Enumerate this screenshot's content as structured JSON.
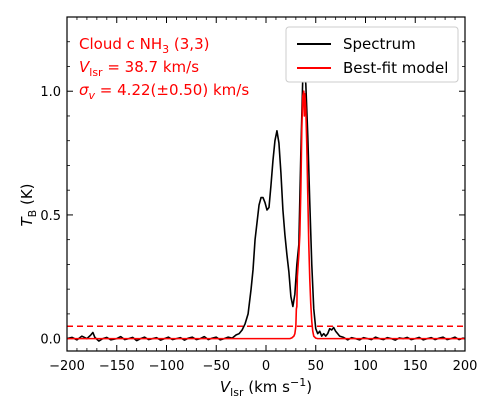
{
  "chart_data": {
    "type": "line",
    "xlim": [
      -200,
      200
    ],
    "ylim": [
      -0.05,
      1.3
    ],
    "xticks": [
      -200,
      -150,
      -100,
      -50,
      0,
      50,
      100,
      150,
      200
    ],
    "xtick_labels": [
      "−200",
      "−150",
      "−100",
      "−50",
      "0",
      "50",
      "100",
      "150",
      "200"
    ],
    "yticks": [
      0.0,
      0.5,
      1.0
    ],
    "ytick_labels": [
      "0.0",
      "0.5",
      "1.0"
    ],
    "xlabel": {
      "main": "V",
      "sub": "lsr",
      "unit_prefix": " (km s",
      "sup": "−1",
      "unit_suffix": ")"
    },
    "ylabel": {
      "main": "T",
      "sub": "B",
      "unit": " (K)"
    },
    "annotations": {
      "line1": {
        "prefix": "Cloud c NH",
        "sub": "3",
        "suffix": " (3,3)"
      },
      "line2": {
        "main": "V",
        "sub": "lsr",
        "rest": " = 38.7 km/s"
      },
      "line3": {
        "main": "σ",
        "sub": "v",
        "rest": " = 4.22(±0.50) km/s"
      }
    },
    "legend_position": "top-right",
    "threshold": {
      "y": 0.05,
      "color": "#ff0000",
      "style": "dashed"
    },
    "series": [
      {
        "name": "Spectrum",
        "color": "#000000",
        "points": [
          [
            -200,
            0.0
          ],
          [
            -195,
            0.005
          ],
          [
            -190,
            -0.005
          ],
          [
            -185,
            0.01
          ],
          [
            -180,
            0.0
          ],
          [
            -176,
            0.015
          ],
          [
            -174,
            0.025
          ],
          [
            -172,
            0.005
          ],
          [
            -168,
            -0.01
          ],
          [
            -164,
            0.0
          ],
          [
            -160,
            0.005
          ],
          [
            -156,
            -0.005
          ],
          [
            -150,
            0.0
          ],
          [
            -146,
            0.008
          ],
          [
            -142,
            -0.004
          ],
          [
            -138,
            0.0
          ],
          [
            -134,
            0.005
          ],
          [
            -130,
            -0.008
          ],
          [
            -126,
            0.0
          ],
          [
            -122,
            0.006
          ],
          [
            -118,
            -0.004
          ],
          [
            -114,
            0.0
          ],
          [
            -110,
            0.004
          ],
          [
            -106,
            -0.006
          ],
          [
            -102,
            0.0
          ],
          [
            -98,
            0.006
          ],
          [
            -94,
            -0.004
          ],
          [
            -90,
            0.0
          ],
          [
            -86,
            0.004
          ],
          [
            -82,
            -0.006
          ],
          [
            -78,
            0.002
          ],
          [
            -74,
            0.006
          ],
          [
            -70,
            -0.004
          ],
          [
            -66,
            0.0
          ],
          [
            -62,
            0.008
          ],
          [
            -58,
            -0.004
          ],
          [
            -54,
            0.002
          ],
          [
            -50,
            0.006
          ],
          [
            -46,
            -0.005
          ],
          [
            -42,
            0.0
          ],
          [
            -38,
            0.006
          ],
          [
            -34,
            0.002
          ],
          [
            -30,
            0.015
          ],
          [
            -27,
            0.02
          ],
          [
            -24,
            0.035
          ],
          [
            -21,
            0.06
          ],
          [
            -18,
            0.1
          ],
          [
            -15,
            0.2
          ],
          [
            -13,
            0.28
          ],
          [
            -11,
            0.4
          ],
          [
            -9,
            0.47
          ],
          [
            -7,
            0.54
          ],
          [
            -5,
            0.57
          ],
          [
            -3,
            0.57
          ],
          [
            -1,
            0.55
          ],
          [
            1,
            0.52
          ],
          [
            3,
            0.53
          ],
          [
            5,
            0.62
          ],
          [
            7,
            0.72
          ],
          [
            9,
            0.8
          ],
          [
            11,
            0.84
          ],
          [
            13,
            0.79
          ],
          [
            15,
            0.67
          ],
          [
            17,
            0.52
          ],
          [
            19,
            0.42
          ],
          [
            21,
            0.34
          ],
          [
            23,
            0.27
          ],
          [
            25,
            0.17
          ],
          [
            27,
            0.13
          ],
          [
            29,
            0.18
          ],
          [
            31,
            0.3
          ],
          [
            33,
            0.38
          ],
          [
            35,
            0.75
          ],
          [
            37,
            1.06
          ],
          [
            38,
            1.09
          ],
          [
            40,
            1.03
          ],
          [
            42,
            0.82
          ],
          [
            44,
            0.55
          ],
          [
            46,
            0.3
          ],
          [
            48,
            0.12
          ],
          [
            50,
            0.04
          ],
          [
            52,
            0.02
          ],
          [
            54,
            0.03
          ],
          [
            56,
            0.01
          ],
          [
            58,
            0.02
          ],
          [
            60,
            0.01
          ],
          [
            62,
            0.02
          ],
          [
            64,
            0.04
          ],
          [
            66,
            0.035
          ],
          [
            68,
            0.045
          ],
          [
            70,
            0.03
          ],
          [
            72,
            0.02
          ],
          [
            74,
            0.01
          ],
          [
            78,
            0.005
          ],
          [
            82,
            -0.005
          ],
          [
            86,
            0.004
          ],
          [
            90,
            0.0
          ],
          [
            94,
            -0.005
          ],
          [
            98,
            0.004
          ],
          [
            102,
            0.0
          ],
          [
            106,
            -0.004
          ],
          [
            110,
            0.006
          ],
          [
            114,
            0.0
          ],
          [
            118,
            -0.004
          ],
          [
            122,
            0.004
          ],
          [
            126,
            0.0
          ],
          [
            130,
            -0.006
          ],
          [
            134,
            0.003
          ],
          [
            138,
            0.0
          ],
          [
            142,
            0.005
          ],
          [
            146,
            -0.004
          ],
          [
            150,
            0.0
          ],
          [
            154,
            0.005
          ],
          [
            158,
            -0.005
          ],
          [
            162,
            0.0
          ],
          [
            166,
            0.004
          ],
          [
            170,
            -0.004
          ],
          [
            174,
            0.002
          ],
          [
            178,
            0.006
          ],
          [
            182,
            -0.004
          ],
          [
            186,
            0.0
          ],
          [
            190,
            0.006
          ],
          [
            194,
            -0.004
          ],
          [
            198,
            0.002
          ],
          [
            200,
            0.0
          ]
        ]
      },
      {
        "name": "Best-fit model",
        "color": "#ff0000",
        "points": [
          [
            -200,
            0.0
          ],
          [
            24,
            0.0
          ],
          [
            26,
            0.003
          ],
          [
            28,
            0.01
          ],
          [
            29,
            0.02
          ],
          [
            30,
            0.05
          ],
          [
            30.5,
            0.12
          ],
          [
            31,
            0.13
          ],
          [
            31.5,
            0.25
          ],
          [
            32,
            0.28
          ],
          [
            33,
            0.34
          ],
          [
            34,
            0.42
          ],
          [
            35,
            0.6
          ],
          [
            36,
            0.85
          ],
          [
            37,
            0.98
          ],
          [
            38,
            1.0
          ],
          [
            38.5,
            0.9
          ],
          [
            39,
            0.99
          ],
          [
            40,
            0.93
          ],
          [
            41,
            0.78
          ],
          [
            42,
            0.58
          ],
          [
            43,
            0.38
          ],
          [
            44,
            0.24
          ],
          [
            45,
            0.14
          ],
          [
            46,
            0.07
          ],
          [
            47,
            0.03
          ],
          [
            48,
            0.01
          ],
          [
            50,
            0.002
          ],
          [
            52,
            0.0
          ],
          [
            200,
            0.0
          ]
        ]
      }
    ]
  }
}
